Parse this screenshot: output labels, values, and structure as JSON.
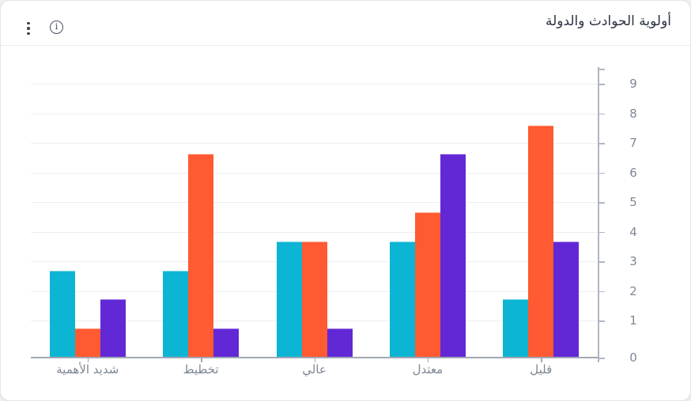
{
  "header": {
    "title": "أولوية الحوادث والدولة"
  },
  "chart_data": {
    "type": "bar",
    "title": "أولوية الحوادث والدولة",
    "direction": "rtl",
    "categories": [
      "شديد الأهمية",
      "تخطيط",
      "عالي",
      "معتدل",
      "قليل"
    ],
    "series": [
      {
        "color": "#0cb5d3",
        "values": [
          3,
          3,
          4,
          4,
          2
        ]
      },
      {
        "color": "#ff5a31",
        "values": [
          1,
          7,
          4,
          5,
          8
        ]
      },
      {
        "color": "#6228d5",
        "values": [
          2,
          1,
          1,
          7,
          4
        ]
      }
    ],
    "y_ticks": [
      0,
      1,
      2,
      3,
      4,
      5,
      6,
      7,
      8,
      9
    ],
    "ylim": [
      0,
      9
    ],
    "grid": true,
    "axis_side": "right",
    "legend_position": "none"
  }
}
